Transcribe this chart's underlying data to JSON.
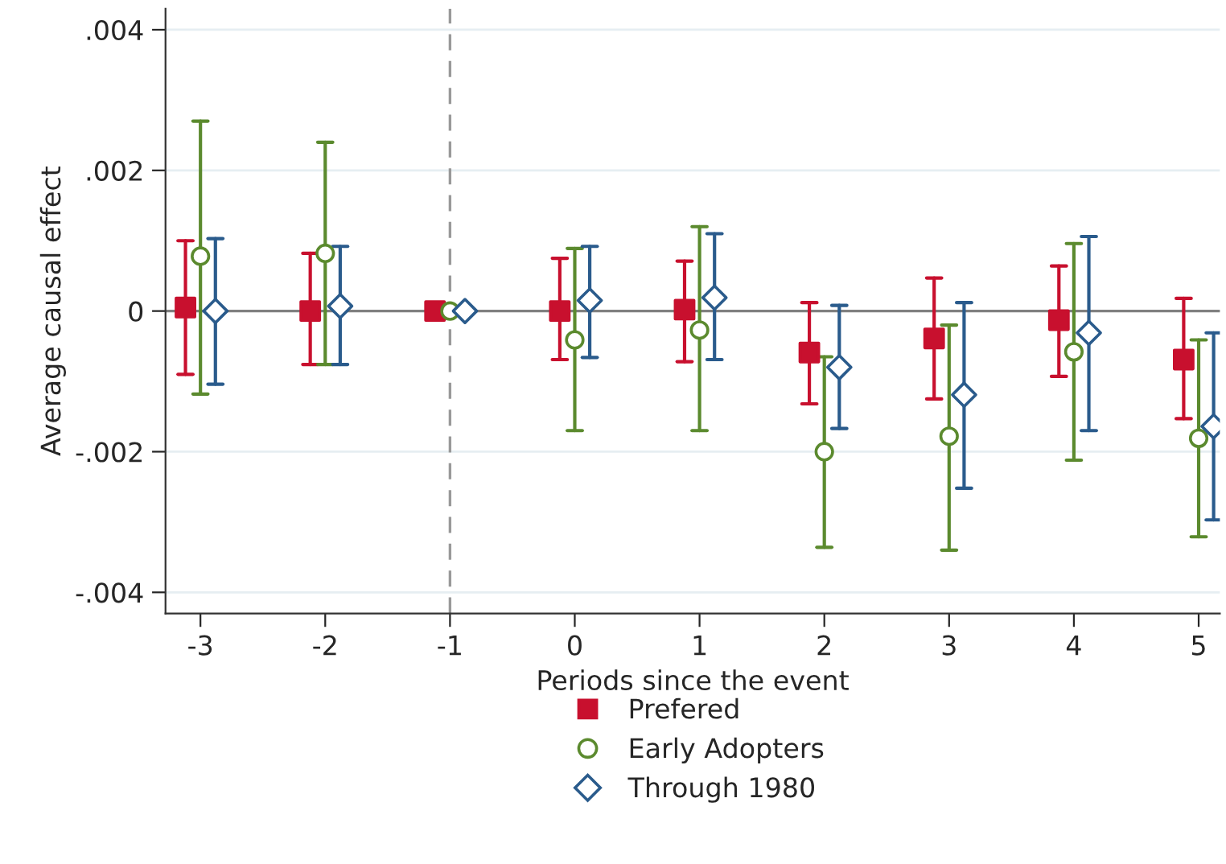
{
  "chart_data": {
    "type": "scatter",
    "xlabel": "Periods since the event",
    "ylabel": "Average causal effect",
    "xlim": [
      -3.28,
      5.17
    ],
    "xticks": [
      -3,
      -2,
      -1,
      0,
      1,
      2,
      3,
      4,
      5
    ],
    "ylim": [
      -0.0043,
      0.0043
    ],
    "yticks": [
      {
        "value": 0.004,
        "label": ".004"
      },
      {
        "value": 0.002,
        "label": ".002"
      },
      0,
      {
        "value": -0.002,
        "label": "-.002"
      },
      {
        "value": -0.004,
        "label": "-.004"
      }
    ],
    "grid": "y",
    "legend": "bottom",
    "ref_lines": [
      {
        "axis": "y",
        "value": 0,
        "color": "#808080",
        "line_style": "solid"
      },
      {
        "axis": "x",
        "value": -1,
        "color": "#999999",
        "line_style": "dashed"
      }
    ],
    "series": [
      {
        "name": "Prefered",
        "color": "#c8102e",
        "marker": "square",
        "x": [
          -3.12,
          -2.12,
          -1.12,
          -0.12,
          0.88,
          1.88,
          2.88,
          3.88,
          4.88
        ],
        "values": [
          5e-05,
          0,
          0,
          0,
          2e-05,
          -0.00059,
          -0.00039,
          -0.00013,
          -0.00069
        ],
        "errors": [
          [
            -0.0009,
            0.001
          ],
          [
            -0.00076,
            0.00082
          ],
          null,
          [
            -0.00069,
            0.00075
          ],
          [
            -0.00072,
            0.00071
          ],
          [
            -0.00132,
            0.00012
          ],
          [
            -0.00125,
            0.00047
          ],
          [
            -0.00093,
            0.00064
          ],
          [
            -0.00153,
            0.00018
          ]
        ]
      },
      {
        "name": "Early Adopters",
        "color": "#5b8a2e",
        "marker": "circle",
        "x": [
          -3,
          -2,
          -1,
          0,
          1,
          2,
          3,
          4,
          5
        ],
        "values": [
          0.00078,
          0.00082,
          0,
          -0.00041,
          -0.00027,
          -0.002,
          -0.00178,
          -0.00058,
          -0.00181
        ],
        "errors": [
          [
            -0.00118,
            0.0027
          ],
          [
            -0.00076,
            0.0024
          ],
          null,
          [
            -0.0017,
            0.00089
          ],
          [
            -0.0017,
            0.0012
          ],
          [
            -0.00336,
            -0.00065
          ],
          [
            -0.0034,
            -0.0002
          ],
          [
            -0.00212,
            0.00096
          ],
          [
            -0.00321,
            -0.00041
          ]
        ]
      },
      {
        "name": "Through 1980",
        "color": "#2a5b8c",
        "marker": "diamond",
        "x": [
          -2.88,
          -1.88,
          -0.88,
          0.12,
          1.12,
          2.12,
          3.12,
          4.12,
          5.12
        ],
        "values": [
          0,
          7e-05,
          0,
          0.00015,
          0.00019,
          -0.0008,
          -0.00119,
          -0.00031,
          -0.00164
        ],
        "errors": [
          [
            -0.00104,
            0.00103
          ],
          [
            -0.00076,
            0.00092
          ],
          null,
          [
            -0.00066,
            0.00092
          ],
          [
            -0.00069,
            0.0011
          ],
          [
            -0.00167,
            8e-05
          ],
          [
            -0.00252,
            0.00012
          ],
          [
            -0.0017,
            0.00106
          ],
          [
            -0.00297,
            -0.00031
          ]
        ]
      }
    ]
  }
}
